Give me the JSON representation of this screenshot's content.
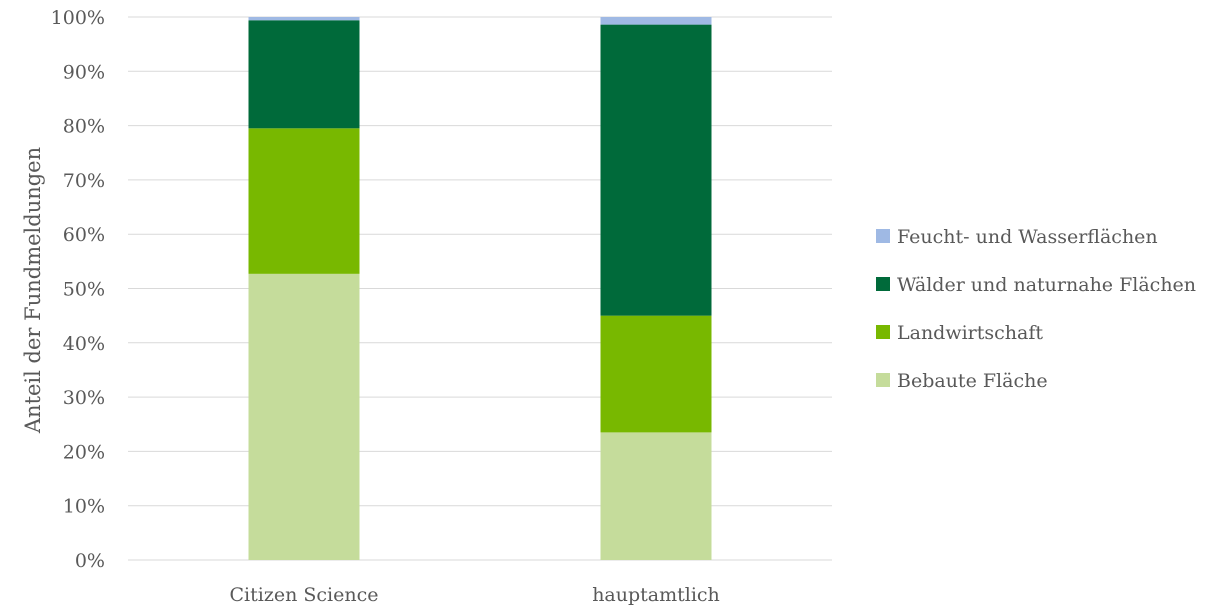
{
  "chart_data": {
    "type": "bar",
    "stacked": true,
    "percent_stacked": true,
    "title": "",
    "xlabel": "",
    "ylabel": "Anteil der Fundmeldungen",
    "ylim": [
      0,
      100
    ],
    "yticks": [
      "0%",
      "10%",
      "20%",
      "30%",
      "40%",
      "50%",
      "60%",
      "70%",
      "80%",
      "90%",
      "100%"
    ],
    "categories": [
      "Citizen Science",
      "hauptamtlich"
    ],
    "series": [
      {
        "name": "Bebaute Fläche",
        "color": "#c5dc9b",
        "values": [
          52.7,
          23.5
        ]
      },
      {
        "name": "Landwirtschaft",
        "color": "#78b800",
        "values": [
          26.8,
          21.5
        ]
      },
      {
        "name": "Wälder und naturnahe Flächen",
        "color": "#006a3a",
        "values": [
          19.9,
          53.6
        ]
      },
      {
        "name": "Feucht- und Wasserflächen",
        "color": "#9fb9e4",
        "values": [
          0.6,
          1.4
        ]
      }
    ],
    "legend_position": "right",
    "grid": true
  }
}
